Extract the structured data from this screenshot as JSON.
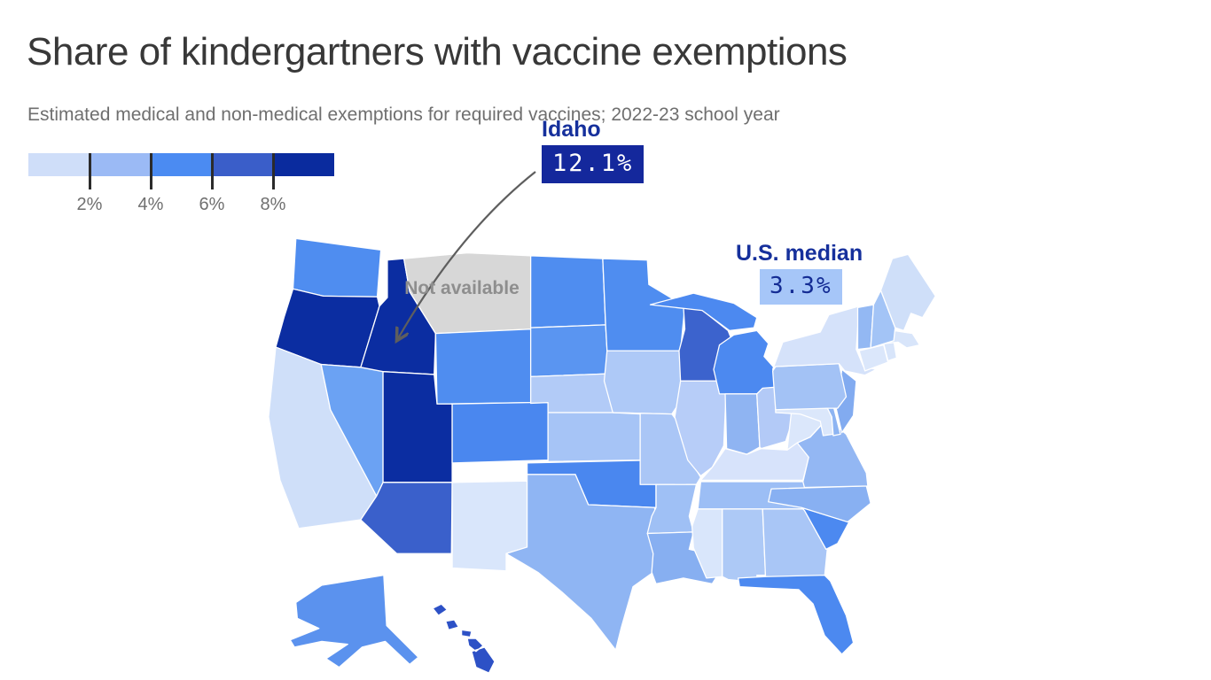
{
  "title": "Share of kindergartners with vaccine exemptions",
  "subtitle": "Estimated medical and non-medical exemptions for required vaccines; 2022-23 school year",
  "legend": {
    "colors": [
      "#cfdef9",
      "#9bbaf5",
      "#4b8bf2",
      "#3a5ec9",
      "#0a2b9e"
    ],
    "tick_labels": [
      "2%",
      "4%",
      "6%",
      "8%"
    ],
    "tick_color": "#2b2b2b"
  },
  "annotations": {
    "idaho": {
      "label": "Idaho",
      "value": "12.1%",
      "badge_bg": "#14289c",
      "badge_text": "#ffffff",
      "label_color": "#16309c"
    },
    "median": {
      "label": "U.S. median",
      "value": "3.3%",
      "badge_bg": "#a6c6f8",
      "badge_text": "#142c94",
      "label_color": "#16309c"
    },
    "not_available": {
      "label": "Not available",
      "color": "#8e8e8e"
    }
  },
  "arrow_color": "#5e5e5e",
  "chart_data": {
    "type": "choropleth-map",
    "geography": "United States (states, Alaska and Hawaii insets)",
    "title": "Share of kindergartners with vaccine exemptions",
    "unit": "%",
    "legend_thresholds_pct": [
      2,
      4,
      6,
      8
    ],
    "highlighted_values": {
      "Idaho": 12.1,
      "U.S. median": 3.3
    },
    "not_available_states": [
      "Montana"
    ],
    "state_border_color": "#ffffff",
    "states": [
      {
        "abbr": "WA",
        "name": "Washington",
        "color": "#4f8df0",
        "level": "4-6%"
      },
      {
        "abbr": "OR",
        "name": "Oregon",
        "color": "#0b2da1",
        "level": "8%+"
      },
      {
        "abbr": "CA",
        "name": "California",
        "color": "#cfdff9",
        "level": "under 2%"
      },
      {
        "abbr": "NV",
        "name": "Nevada",
        "color": "#6ba2f3",
        "level": "4-6%"
      },
      {
        "abbr": "ID",
        "name": "Idaho",
        "color": "#0b2da1",
        "level": "8%+"
      },
      {
        "abbr": "MT",
        "name": "Montana",
        "color": "#d7d7d7",
        "level": "not available"
      },
      {
        "abbr": "WY",
        "name": "Wyoming",
        "color": "#4f8df0",
        "level": "4-6%"
      },
      {
        "abbr": "UT",
        "name": "Utah",
        "color": "#0b2da1",
        "level": "8%+"
      },
      {
        "abbr": "CO",
        "name": "Colorado",
        "color": "#4a87ef",
        "level": "4-6%"
      },
      {
        "abbr": "AZ",
        "name": "Arizona",
        "color": "#3a60cb",
        "level": "6-8%"
      },
      {
        "abbr": "NM",
        "name": "New Mexico",
        "color": "#d9e6fb",
        "level": "under 2%"
      },
      {
        "abbr": "ND",
        "name": "North Dakota",
        "color": "#4f8df0",
        "level": "4-6%"
      },
      {
        "abbr": "SD",
        "name": "South Dakota",
        "color": "#5a95f1",
        "level": "4-6%"
      },
      {
        "abbr": "NE",
        "name": "Nebraska",
        "color": "#b2cbf7",
        "level": "2-4%"
      },
      {
        "abbr": "KS",
        "name": "Kansas",
        "color": "#a6c4f6",
        "level": "2-4%"
      },
      {
        "abbr": "OK",
        "name": "Oklahoma",
        "color": "#4a87ef",
        "level": "4-6%"
      },
      {
        "abbr": "TX",
        "name": "Texas",
        "color": "#8fb5f3",
        "level": "2-4%"
      },
      {
        "abbr": "MN",
        "name": "Minnesota",
        "color": "#4f8df0",
        "level": "4-6%"
      },
      {
        "abbr": "IA",
        "name": "Iowa",
        "color": "#aec9f7",
        "level": "2-4%"
      },
      {
        "abbr": "MO",
        "name": "Missouri",
        "color": "#aac6f6",
        "level": "2-4%"
      },
      {
        "abbr": "AR",
        "name": "Arkansas",
        "color": "#9fc0f5",
        "level": "2-4%"
      },
      {
        "abbr": "LA",
        "name": "Louisiana",
        "color": "#87aff1",
        "level": "2-4%"
      },
      {
        "abbr": "WI",
        "name": "Wisconsin",
        "color": "#3c63cd",
        "level": "6-8%"
      },
      {
        "abbr": "IL",
        "name": "Illinois",
        "color": "#b7cdf8",
        "level": "2-4%"
      },
      {
        "abbr": "MI",
        "name": "Michigan",
        "color": "#4c89f0",
        "level": "4-6%"
      },
      {
        "abbr": "IN",
        "name": "Indiana",
        "color": "#8fb4f2",
        "level": "2-4%"
      },
      {
        "abbr": "OH",
        "name": "Ohio",
        "color": "#b3caf7",
        "level": "2-4%"
      },
      {
        "abbr": "KY",
        "name": "Kentucky",
        "color": "#d7e3fb",
        "level": "under 2%"
      },
      {
        "abbr": "TN",
        "name": "Tennessee",
        "color": "#9cbef5",
        "level": "2-4%"
      },
      {
        "abbr": "MS",
        "name": "Mississippi",
        "color": "#d9e6fb",
        "level": "under 2%"
      },
      {
        "abbr": "AL",
        "name": "Alabama",
        "color": "#adc9f6",
        "level": "2-4%"
      },
      {
        "abbr": "GA",
        "name": "Georgia",
        "color": "#a9c6f6",
        "level": "2-4%"
      },
      {
        "abbr": "FL",
        "name": "Florida",
        "color": "#4c89f0",
        "level": "4-6%"
      },
      {
        "abbr": "SC",
        "name": "South Carolina",
        "color": "#4c89f0",
        "level": "4-6%"
      },
      {
        "abbr": "NC",
        "name": "North Carolina",
        "color": "#88b0f2",
        "level": "2-4%"
      },
      {
        "abbr": "VA",
        "name": "Virginia",
        "color": "#93b7f3",
        "level": "2-4%"
      },
      {
        "abbr": "WV",
        "name": "West Virginia",
        "color": "#dbe7fb",
        "level": "under 2%"
      },
      {
        "abbr": "MD",
        "name": "Maryland",
        "color": "#dbe7fb",
        "level": "under 2%"
      },
      {
        "abbr": "DE",
        "name": "Delaware",
        "color": "#8db4f2",
        "level": "2-4%"
      },
      {
        "abbr": "NJ",
        "name": "New Jersey",
        "color": "#82abf0",
        "level": "2-4%"
      },
      {
        "abbr": "PA",
        "name": "Pennsylvania",
        "color": "#a3c2f5",
        "level": "2-4%"
      },
      {
        "abbr": "NY",
        "name": "New York",
        "color": "#d5e2fa",
        "level": "under 2%"
      },
      {
        "abbr": "CT",
        "name": "Connecticut",
        "color": "#dbe7fb",
        "level": "under 2%"
      },
      {
        "abbr": "RI",
        "name": "Rhode Island",
        "color": "#d8e5fa",
        "level": "under 2%"
      },
      {
        "abbr": "MA",
        "name": "Massachusetts",
        "color": "#d8e5fa",
        "level": "under 2%"
      },
      {
        "abbr": "VT",
        "name": "Vermont",
        "color": "#93b8f3",
        "level": "2-4%"
      },
      {
        "abbr": "NH",
        "name": "New Hampshire",
        "color": "#a3c4f6",
        "level": "2-4%"
      },
      {
        "abbr": "ME",
        "name": "Maine",
        "color": "#cfdff9",
        "level": "under 2%"
      },
      {
        "abbr": "AK",
        "name": "Alaska",
        "color": "#5b92ee",
        "level": "4-6%"
      },
      {
        "abbr": "HI",
        "name": "Hawaii",
        "color": "#2d51c6",
        "level": "6-8%"
      }
    ]
  }
}
